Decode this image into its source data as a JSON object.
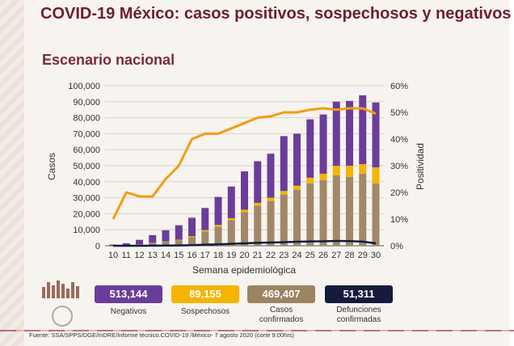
{
  "header": {
    "title": "COVID-19 México: casos positivos, sospechosos y negativos",
    "subtitle": "Escenario nacional"
  },
  "chart_data": {
    "type": "bar",
    "stacked": true,
    "xlabel": "Semana epidemiológica",
    "ylabel": "Casos",
    "y2label": "Positividad",
    "categories": [
      "10",
      "11",
      "12",
      "13",
      "14",
      "15",
      "16",
      "17",
      "18",
      "19",
      "20",
      "21",
      "22",
      "23",
      "24",
      "25",
      "26",
      "27",
      "28",
      "29",
      "30"
    ],
    "ylim": [
      0,
      100000
    ],
    "yticks": [
      "0",
      "10,000",
      "20,000",
      "30,000",
      "40,000",
      "50,000",
      "60,000",
      "70,000",
      "80,000",
      "90,000",
      "100,000"
    ],
    "y2lim": [
      0,
      60
    ],
    "y2ticks": [
      "0%",
      "10%",
      "20%",
      "30%",
      "40%",
      "50%",
      "60%"
    ],
    "series": [
      {
        "key": "confirmed",
        "color": "#a08868",
        "values": [
          60,
          300,
          800,
          1700,
          2500,
          3500,
          5500,
          9000,
          12000,
          16000,
          21000,
          25000,
          28000,
          32000,
          35000,
          39000,
          41000,
          44000,
          43000,
          45000,
          39000
        ]
      },
      {
        "key": "suspected",
        "color": "#f5b400",
        "values": [
          10,
          50,
          100,
          150,
          200,
          300,
          500,
          800,
          1000,
          1200,
          1500,
          1800,
          2000,
          2200,
          2500,
          3500,
          4000,
          6000,
          7000,
          6000,
          10000
        ]
      },
      {
        "key": "negative",
        "color": "#6a3d9a",
        "values": [
          700,
          1200,
          2800,
          4800,
          7000,
          9000,
          11500,
          13800,
          17500,
          19800,
          24000,
          26000,
          27500,
          34300,
          32500,
          36500,
          37000,
          40000,
          40500,
          43000,
          40500
        ]
      },
      {
        "key": "deaths",
        "type": "line",
        "color": "#141b3d",
        "values": [
          0,
          10,
          20,
          50,
          100,
          200,
          400,
          700,
          900,
          1200,
          1500,
          1800,
          2000,
          2200,
          2500,
          2700,
          2800,
          3000,
          2900,
          2600,
          1500
        ]
      },
      {
        "key": "positivity",
        "type": "line",
        "axis": "y2",
        "color": "#f39c12",
        "values": [
          10,
          20,
          18.5,
          18.5,
          25,
          30,
          40,
          42,
          42,
          44,
          46,
          48,
          48.5,
          50,
          50,
          51,
          51.5,
          51,
          51.5,
          51.5,
          49.5
        ]
      }
    ]
  },
  "summary": {
    "negatives_value": "513,144",
    "negatives_label": "Negativos",
    "negatives_color": "#6a3d9a",
    "suspected_value": "89,155",
    "suspected_label": "Sospechosos",
    "suspected_color": "#f5b400",
    "confirmed_value": "469,407",
    "confirmed_label_1": "Casos",
    "confirmed_label_2": "confirmados",
    "confirmed_color": "#9c8462",
    "deaths_value": "51,311",
    "deaths_label_1": "Defunciones",
    "deaths_label_2": "confirmadas",
    "deaths_color": "#141b3d"
  },
  "footer": {
    "source": "Fuente: SSA/SPPS/DGE/InDRE/Informe técnico.COVID-19 /México- 7 agosto 2020 (corte 9:00hrs)"
  }
}
